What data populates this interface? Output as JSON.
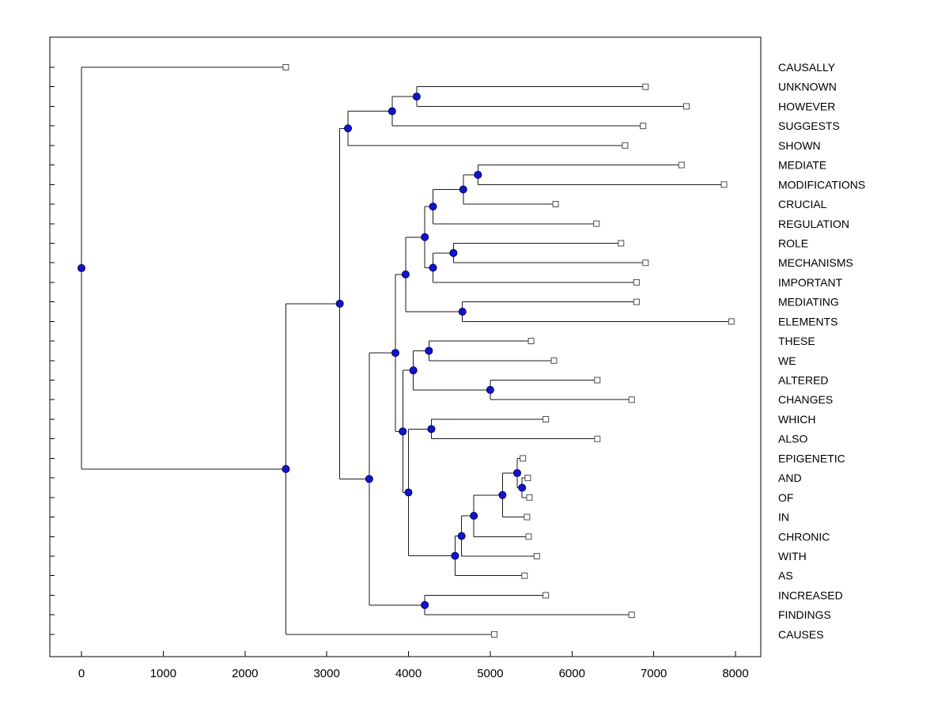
{
  "figure": {
    "background": "#ffffff",
    "title": ""
  },
  "chart_data": {
    "type": "dendrogram",
    "orientation": "horizontal-root-left",
    "title": "",
    "xlabel": "",
    "ylabel": "",
    "grid": false,
    "legend": null,
    "x_axis": {
      "range": [
        -400,
        8300
      ],
      "ticks": [
        0,
        1000,
        2000,
        3000,
        4000,
        5000,
        6000,
        7000,
        8000
      ],
      "tick_labels": [
        "0",
        "1000",
        "2000",
        "3000",
        "4000",
        "5000",
        "6000",
        "7000",
        "8000"
      ]
    },
    "leaves": [
      {
        "label": "CAUSALLY",
        "tip": 2500
      },
      {
        "label": "UNKNOWN",
        "tip": 6900
      },
      {
        "label": "HOWEVER",
        "tip": 7400
      },
      {
        "label": "SUGGESTS",
        "tip": 6870
      },
      {
        "label": "SHOWN",
        "tip": 6650
      },
      {
        "label": "MEDIATE",
        "tip": 7340
      },
      {
        "label": "MODIFICATIONS",
        "tip": 7860
      },
      {
        "label": "CRUCIAL",
        "tip": 5800
      },
      {
        "label": "REGULATION",
        "tip": 6300
      },
      {
        "label": "ROLE",
        "tip": 6600
      },
      {
        "label": "MECHANISMS",
        "tip": 6900
      },
      {
        "label": "IMPORTANT",
        "tip": 6790
      },
      {
        "label": "MEDIATING",
        "tip": 6790
      },
      {
        "label": "ELEMENTS",
        "tip": 7950
      },
      {
        "label": "THESE",
        "tip": 5500
      },
      {
        "label": "WE",
        "tip": 5780
      },
      {
        "label": "ALTERED",
        "tip": 6310
      },
      {
        "label": "CHANGES",
        "tip": 6730
      },
      {
        "label": "WHICH",
        "tip": 5680
      },
      {
        "label": "ALSO",
        "tip": 6310
      },
      {
        "label": "EPIGENETIC",
        "tip": 5400
      },
      {
        "label": "AND",
        "tip": 5460
      },
      {
        "label": "OF",
        "tip": 5480
      },
      {
        "label": "IN",
        "tip": 5450
      },
      {
        "label": "CHRONIC",
        "tip": 5470
      },
      {
        "label": "WITH",
        "tip": 5570
      },
      {
        "label": "AS",
        "tip": 5420
      },
      {
        "label": "INCREASED",
        "tip": 5680
      },
      {
        "label": "FINDINGS",
        "tip": 6730
      },
      {
        "label": "CAUSES",
        "tip": 5050
      }
    ],
    "tree": {
      "v": 0,
      "c": [
        {
          "leaf": "CAUSALLY"
        },
        {
          "v": 2500,
          "c": [
            {
              "v": 3160,
              "c": [
                {
                  "v": 3260,
                  "c": [
                    {
                      "v": 3800,
                      "c": [
                        {
                          "v": 4100,
                          "c": [
                            {
                              "leaf": "UNKNOWN"
                            },
                            {
                              "leaf": "HOWEVER"
                            }
                          ]
                        },
                        {
                          "leaf": "SUGGESTS"
                        }
                      ]
                    },
                    {
                      "leaf": "SHOWN"
                    }
                  ]
                },
                {
                  "v": 3520,
                  "c": [
                    {
                      "v": 3840,
                      "c": [
                        {
                          "v": 3965,
                          "c": [
                            {
                              "v": 4200,
                              "c": [
                                {
                                  "v": 4300,
                                  "c": [
                                    {
                                      "v": 4670,
                                      "c": [
                                        {
                                          "v": 4850,
                                          "c": [
                                            {
                                              "leaf": "MEDIATE"
                                            },
                                            {
                                              "leaf": "MODIFICATIONS"
                                            }
                                          ]
                                        },
                                        {
                                          "leaf": "CRUCIAL"
                                        }
                                      ]
                                    },
                                    {
                                      "leaf": "REGULATION"
                                    }
                                  ]
                                },
                                {
                                  "v": 4300,
                                  "c": [
                                    {
                                      "v": 4550,
                                      "c": [
                                        {
                                          "leaf": "ROLE"
                                        },
                                        {
                                          "leaf": "MECHANISMS"
                                        }
                                      ]
                                    },
                                    {
                                      "leaf": "IMPORTANT"
                                    }
                                  ]
                                }
                              ]
                            },
                            {
                              "v": 4660,
                              "c": [
                                {
                                  "leaf": "MEDIATING"
                                },
                                {
                                  "leaf": "ELEMENTS"
                                }
                              ]
                            }
                          ]
                        },
                        {
                          "v": 3930,
                          "c": [
                            {
                              "v": 4060,
                              "c": [
                                {
                                  "v": 4250,
                                  "c": [
                                    {
                                      "leaf": "THESE"
                                    },
                                    {
                                      "leaf": "WE"
                                    }
                                  ]
                                },
                                {
                                  "v": 5000,
                                  "c": [
                                    {
                                      "leaf": "ALTERED"
                                    },
                                    {
                                      "leaf": "CHANGES"
                                    }
                                  ]
                                }
                              ]
                            },
                            {
                              "v": 4000,
                              "c": [
                                {
                                  "v": 4280,
                                  "c": [
                                    {
                                      "leaf": "WHICH"
                                    },
                                    {
                                      "leaf": "ALSO"
                                    }
                                  ]
                                },
                                {
                                  "v": 4570,
                                  "c": [
                                    {
                                      "v": 4650,
                                      "c": [
                                        {
                                          "v": 4800,
                                          "c": [
                                            {
                                              "v": 5150,
                                              "c": [
                                                {
                                                  "v": 5330,
                                                  "c": [
                                                    {
                                                      "leaf": "EPIGENETIC"
                                                    },
                                                    {
                                                      "v": 5390,
                                                      "c": [
                                                        {
                                                          "leaf": "AND"
                                                        },
                                                        {
                                                          "leaf": "OF"
                                                        }
                                                      ]
                                                    }
                                                  ]
                                                },
                                                {
                                                  "leaf": "IN"
                                                }
                                              ]
                                            },
                                            {
                                              "leaf": "CHRONIC"
                                            }
                                          ]
                                        },
                                        {
                                          "leaf": "WITH"
                                        }
                                      ]
                                    },
                                    {
                                      "leaf": "AS"
                                    }
                                  ]
                                }
                              ]
                            }
                          ]
                        }
                      ]
                    },
                    {
                      "v": 4200,
                      "c": [
                        {
                          "leaf": "INCREASED"
                        },
                        {
                          "leaf": "FINDINGS"
                        }
                      ]
                    }
                  ]
                }
              ]
            },
            {
              "leaf": "CAUSES"
            }
          ]
        }
      ]
    },
    "styles": {
      "line_color": "#1a1a1a",
      "box_color": "#000000",
      "node_fill": "#1414cc",
      "node_stroke": "#000066",
      "leaf_marker_fill": "#ffffff",
      "leaf_marker_stroke": "#4d4d4d",
      "text_color": "#000000"
    }
  }
}
